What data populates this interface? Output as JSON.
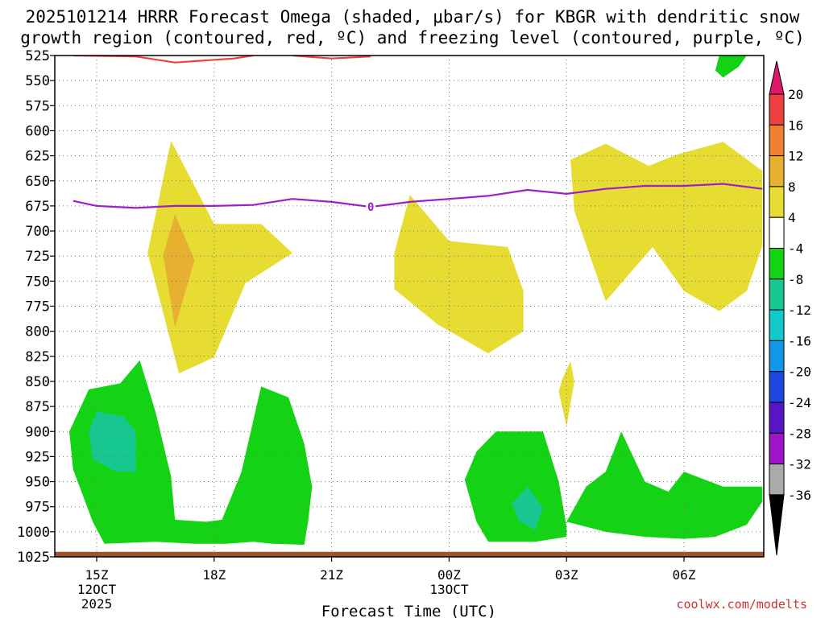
{
  "chart_data": {
    "type": "contour",
    "title": [
      "2025101214 HRRR Forecast Omega (shaded, μbar/s) for KBGR with dendritic snow",
      "growth region (contoured, red, ºC) and freezing level (contoured, purple, ºC)"
    ],
    "xlabel": "Forecast Time (UTC)",
    "ylabel": "",
    "credit": "coolwx.com/modelts",
    "x_ticks": [
      {
        "h": 0,
        "lines": [
          "15Z",
          "12OCT",
          "2025"
        ]
      },
      {
        "h": 3,
        "lines": [
          "18Z"
        ]
      },
      {
        "h": 6,
        "lines": [
          "21Z"
        ]
      },
      {
        "h": 9,
        "lines": [
          "00Z",
          "13OCT"
        ]
      },
      {
        "h": 12,
        "lines": [
          "03Z"
        ]
      },
      {
        "h": 15,
        "lines": [
          "06Z"
        ]
      }
    ],
    "xlim": [
      -0.6,
      17.0
    ],
    "ylim": [
      1025,
      525
    ],
    "y_ticks": [
      "525",
      "550",
      "575",
      "600",
      "625",
      "650",
      "675",
      "700",
      "725",
      "750",
      "775",
      "800",
      "825",
      "850",
      "875",
      "900",
      "925",
      "950",
      "975",
      "1000",
      "1025"
    ],
    "colorbar": {
      "labels": [
        "20",
        "16",
        "12",
        "8",
        "4",
        "-4",
        "-8",
        "-12",
        "-16",
        "-20",
        "-24",
        "-28",
        "-32",
        "-36"
      ],
      "colors": [
        "#e0186c",
        "#ee4040",
        "#ee8030",
        "#e8b030",
        "#e6dc32",
        "#ffffff",
        "#14d214",
        "#16c890",
        "#12c8c8",
        "#1496e6",
        "#1e46e0",
        "#5a14c8",
        "#a014c8",
        "#aaaaaa",
        "#000000"
      ]
    },
    "omega_regions": [
      {
        "value_range": "4 to 8",
        "color": "#e6dc32",
        "points": [
          [
            1.9,
            610
          ],
          [
            3.0,
            693
          ],
          [
            4.2,
            693
          ],
          [
            5.0,
            722
          ],
          [
            3.8,
            752
          ],
          [
            3.0,
            826
          ],
          [
            2.1,
            842
          ],
          [
            1.3,
            722
          ]
        ]
      },
      {
        "value_range": "8 to 12",
        "color": "#e8b030",
        "points": [
          [
            2.0,
            683
          ],
          [
            2.5,
            729
          ],
          [
            2.0,
            796
          ],
          [
            1.7,
            724
          ]
        ]
      },
      {
        "value_range": "4 to 8",
        "color": "#e6dc32",
        "points": [
          [
            8.0,
            664
          ],
          [
            9.0,
            710
          ],
          [
            10.5,
            716
          ],
          [
            10.9,
            760
          ],
          [
            10.9,
            800
          ],
          [
            10.0,
            822
          ],
          [
            8.7,
            793
          ],
          [
            7.6,
            758
          ],
          [
            7.6,
            722
          ]
        ]
      },
      {
        "value_range": "4 to 8",
        "color": "#e6dc32",
        "points": [
          [
            12.1,
            629
          ],
          [
            13.0,
            613
          ],
          [
            14.1,
            635
          ],
          [
            14.8,
            624
          ],
          [
            16.0,
            611
          ],
          [
            17.0,
            640
          ],
          [
            17.0,
            715
          ],
          [
            16.6,
            760
          ],
          [
            15.9,
            780
          ],
          [
            15.0,
            760
          ],
          [
            14.2,
            716
          ],
          [
            13.0,
            770
          ],
          [
            12.2,
            680
          ]
        ]
      },
      {
        "value_range": "4 to 8",
        "color": "#e6dc32",
        "points": [
          [
            11.9,
            847
          ],
          [
            12.1,
            830
          ],
          [
            12.2,
            850
          ],
          [
            12.0,
            895
          ],
          [
            11.8,
            860
          ]
        ]
      },
      {
        "value_range": "-8 to -4",
        "color": "#14d214",
        "points": [
          [
            -0.2,
            858
          ],
          [
            0.6,
            852
          ],
          [
            1.1,
            829
          ],
          [
            1.5,
            880
          ],
          [
            1.9,
            945
          ],
          [
            2.0,
            988
          ],
          [
            2.8,
            990
          ],
          [
            3.2,
            988
          ],
          [
            3.7,
            940
          ],
          [
            4.2,
            855
          ],
          [
            4.9,
            866
          ],
          [
            5.3,
            912
          ],
          [
            5.5,
            955
          ],
          [
            5.4,
            990
          ],
          [
            5.3,
            1013
          ],
          [
            4.5,
            1012
          ],
          [
            4.0,
            1010
          ],
          [
            3.3,
            1012
          ],
          [
            2.5,
            1012
          ],
          [
            1.5,
            1010
          ],
          [
            0.2,
            1012
          ],
          [
            -0.1,
            990
          ],
          [
            -0.6,
            938
          ],
          [
            -0.7,
            900
          ]
        ]
      },
      {
        "value_range": "-12 to -8",
        "color": "#16c890",
        "points": [
          [
            0.0,
            880
          ],
          [
            0.7,
            885
          ],
          [
            1.0,
            900
          ],
          [
            1.0,
            940
          ],
          [
            0.5,
            940
          ],
          [
            -0.1,
            928
          ],
          [
            -0.2,
            900
          ]
        ]
      },
      {
        "value_range": "-8 to -4",
        "color": "#14d214",
        "points": [
          [
            10.2,
            900
          ],
          [
            11.4,
            900
          ],
          [
            11.8,
            950
          ],
          [
            12.0,
            995
          ],
          [
            12.0,
            1005
          ],
          [
            11.2,
            1010
          ],
          [
            10.0,
            1010
          ],
          [
            9.7,
            990
          ],
          [
            9.4,
            948
          ],
          [
            9.7,
            920
          ]
        ]
      },
      {
        "value_range": "-12 to -8",
        "color": "#16c890",
        "points": [
          [
            11.0,
            955
          ],
          [
            11.4,
            976
          ],
          [
            11.2,
            998
          ],
          [
            10.8,
            990
          ],
          [
            10.6,
            972
          ]
        ]
      },
      {
        "value_range": "-8 to -4",
        "color": "#14d214",
        "points": [
          [
            12.0,
            990
          ],
          [
            12.5,
            955
          ],
          [
            13.0,
            940
          ],
          [
            13.4,
            900
          ],
          [
            14.0,
            950
          ],
          [
            14.6,
            960
          ],
          [
            15.0,
            940
          ],
          [
            16.0,
            955
          ],
          [
            17.0,
            955
          ],
          [
            17.0,
            970
          ],
          [
            16.6,
            993
          ],
          [
            15.8,
            1005
          ],
          [
            15.0,
            1007
          ],
          [
            14.0,
            1005
          ],
          [
            13.0,
            1000
          ]
        ]
      },
      {
        "value_range": "-8 to -4",
        "color": "#14d214",
        "points": [
          [
            15.9,
            525
          ],
          [
            16.6,
            525
          ],
          [
            16.4,
            536
          ],
          [
            16.0,
            547
          ],
          [
            15.8,
            540
          ]
        ]
      }
    ],
    "ground_band": {
      "color": "#a0522d",
      "from": 1020,
      "to": 1025
    },
    "dgz_contour": {
      "color": "#ee4040",
      "segments": [
        [
          [
            -0.6,
            525
          ],
          [
            1.0,
            526
          ],
          [
            2.0,
            532
          ],
          [
            3.5,
            528
          ],
          [
            4.0,
            525
          ]
        ],
        [
          [
            5.0,
            525
          ],
          [
            6.0,
            528
          ],
          [
            7.0,
            526
          ]
        ]
      ]
    },
    "freezing_level": {
      "color": "#9c1fc8",
      "label": "0",
      "label_at": [
        7.0,
        676
      ],
      "points": [
        [
          -0.6,
          670
        ],
        [
          0.0,
          675
        ],
        [
          1.0,
          677
        ],
        [
          2.0,
          675
        ],
        [
          3.0,
          675
        ],
        [
          4.0,
          674
        ],
        [
          5.0,
          668
        ],
        [
          6.0,
          671
        ],
        [
          7.0,
          676
        ],
        [
          8.0,
          671
        ],
        [
          9.0,
          668
        ],
        [
          10.0,
          665
        ],
        [
          11.0,
          659
        ],
        [
          12.0,
          663
        ],
        [
          13.0,
          658
        ],
        [
          14.0,
          655
        ],
        [
          15.0,
          655
        ],
        [
          16.0,
          653
        ],
        [
          17.0,
          658
        ]
      ]
    }
  }
}
